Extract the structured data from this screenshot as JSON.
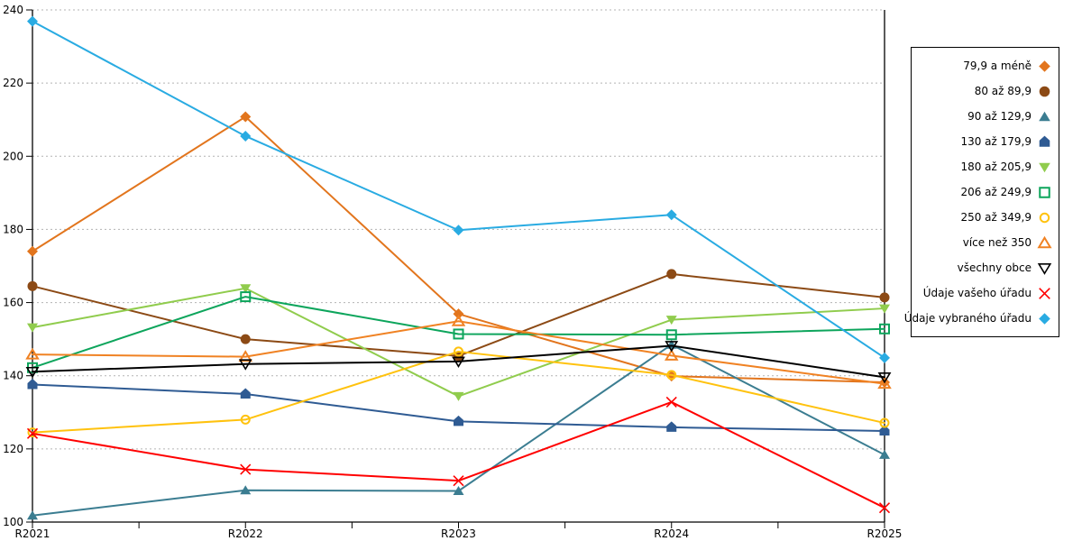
{
  "chart_data": {
    "type": "line",
    "title": "",
    "x_categories": [
      "R2021",
      "R2022",
      "R2023",
      "R2024",
      "R2025"
    ],
    "ylim": [
      100,
      240
    ],
    "y_ticks": [
      100,
      120,
      140,
      160,
      180,
      200,
      220,
      240
    ],
    "grid": {
      "horizontal": true,
      "style": "dotted",
      "color": "#b3b3b3"
    },
    "legend_position": "right",
    "axis_color": "#000000",
    "series": [
      {
        "name": "79,9 a méně",
        "color": "#e2751d",
        "marker": "diamond-icon",
        "filled": true,
        "values": [
          174.0,
          210.8,
          156.9,
          139.9,
          138.2
        ]
      },
      {
        "name": "80 až 89,9",
        "color": "#8c4a15",
        "marker": "circle-icon",
        "filled": true,
        "values": [
          164.5,
          150.0,
          145.4,
          167.8,
          161.4
        ]
      },
      {
        "name": "90 až 129,9",
        "color": "#3b7d91",
        "marker": "triangle-up-icon",
        "filled": true,
        "values": [
          101.8,
          108.7,
          108.5,
          148.5,
          118.4
        ]
      },
      {
        "name": "130 až 179,9",
        "color": "#2f5b93",
        "marker": "pentagon-icon",
        "filled": true,
        "values": [
          137.6,
          135.0,
          127.5,
          125.9,
          124.9
        ]
      },
      {
        "name": "180 až 205,9",
        "color": "#90cc4d",
        "marker": "triangle-down-icon",
        "filled": true,
        "values": [
          153.2,
          163.9,
          134.4,
          155.3,
          158.4
        ]
      },
      {
        "name": "206 až 249,9",
        "color": "#0da55c",
        "marker": "square-icon",
        "filled": false,
        "values": [
          142.2,
          161.6,
          151.4,
          151.2,
          152.8
        ]
      },
      {
        "name": "250 až 349,9",
        "color": "#ffc20e",
        "marker": "circle-icon",
        "filled": false,
        "values": [
          124.5,
          128.0,
          146.6,
          140.2,
          127.1
        ]
      },
      {
        "name": "více než 350",
        "color": "#f08223",
        "marker": "triangle-up-icon",
        "filled": false,
        "values": [
          145.8,
          145.2,
          154.9,
          145.5,
          137.8
        ]
      },
      {
        "name": "všechny obce",
        "color": "#000000",
        "marker": "triangle-down-icon",
        "filled": false,
        "values": [
          141.1,
          143.2,
          143.9,
          148.2,
          139.6
        ]
      },
      {
        "name": "Údaje vašeho úřadu",
        "color": "#ff0000",
        "marker": "x-icon",
        "filled": false,
        "values": [
          124.2,
          114.4,
          111.3,
          132.8,
          103.9
        ]
      },
      {
        "name": "Údaje vybraného úřadu",
        "color": "#29abe2",
        "marker": "diamond-icon",
        "filled": true,
        "values": [
          236.9,
          205.5,
          179.8,
          184.0,
          144.9
        ]
      }
    ]
  }
}
